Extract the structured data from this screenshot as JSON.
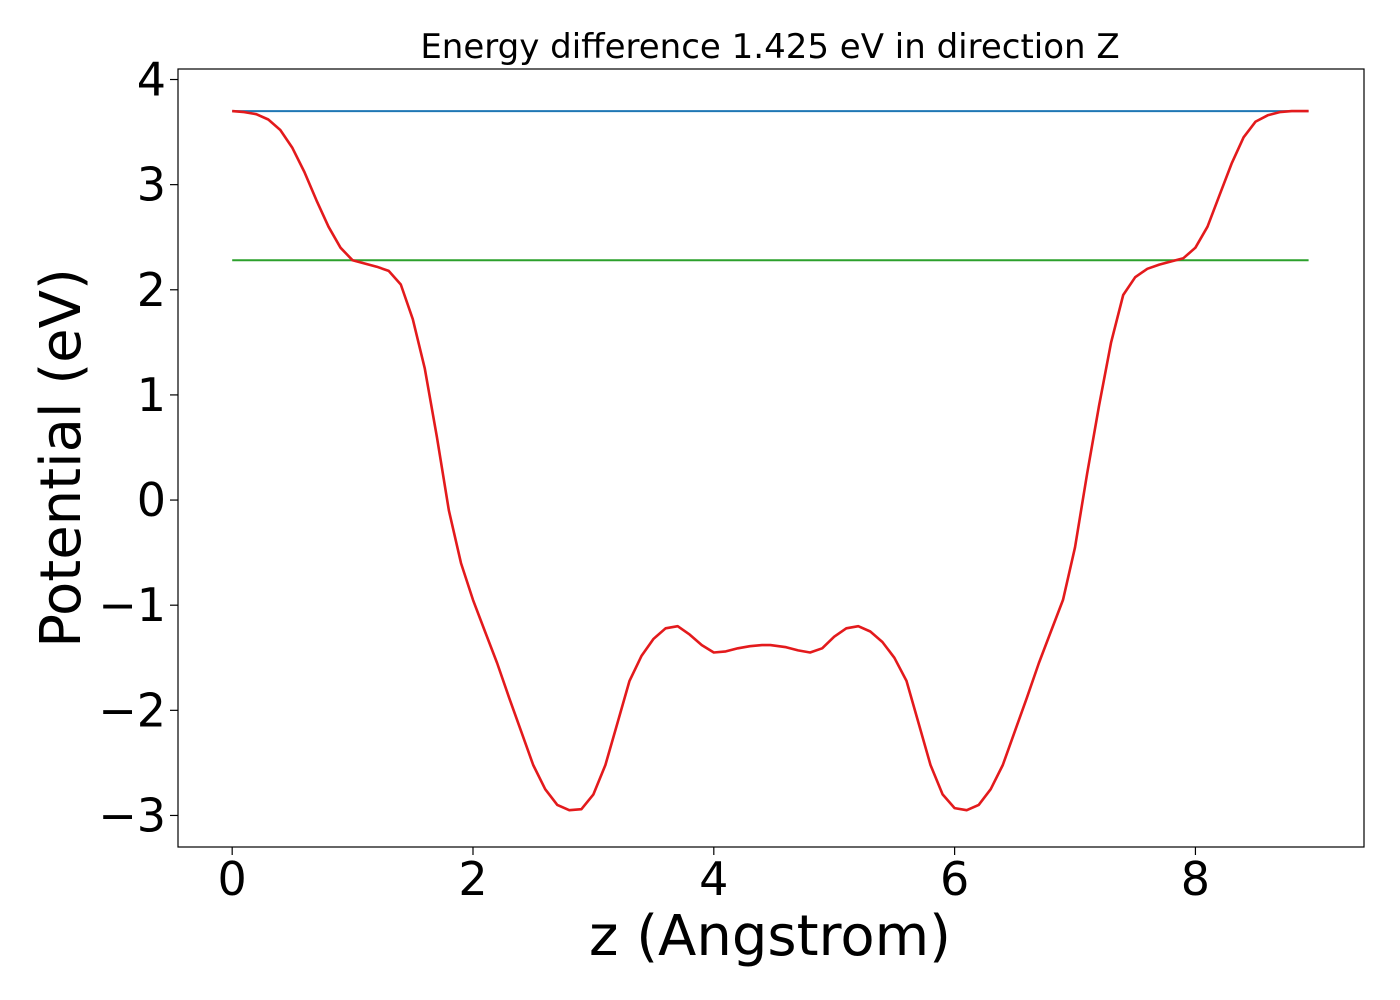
{
  "chart_data": {
    "type": "line",
    "title": "Energy difference 1.425 eV in direction Z",
    "xlabel": "z (Angstrom)",
    "ylabel": "Potential (eV)",
    "xlim": [
      -0.45,
      9.4
    ],
    "ylim": [
      -3.3,
      4.1
    ],
    "xticks": [
      0,
      2,
      4,
      6,
      8
    ],
    "xtick_labels": [
      "0",
      "2",
      "4",
      "6",
      "8"
    ],
    "yticks": [
      4,
      3,
      2,
      1,
      0,
      -1,
      -2,
      -3
    ],
    "ytick_labels": [
      "4",
      "3",
      "2",
      "1",
      "0",
      "−1",
      "−2",
      "−3"
    ],
    "grid": false,
    "series": [
      {
        "color": "#1f77b4",
        "x": [
          0,
          8.94
        ],
        "y": [
          3.7,
          3.7
        ]
      },
      {
        "color": "#2ca02c",
        "x": [
          0,
          8.94
        ],
        "y": [
          2.28,
          2.28
        ]
      },
      {
        "color": "#e31a1c",
        "x": [
          0,
          0.1,
          0.2,
          0.3,
          0.4,
          0.5,
          0.6,
          0.7,
          0.8,
          0.9,
          1.0,
          1.1,
          1.2,
          1.3,
          1.4,
          1.5,
          1.6,
          1.7,
          1.8,
          1.9,
          2.0,
          2.1,
          2.2,
          2.3,
          2.4,
          2.5,
          2.6,
          2.7,
          2.8,
          2.9,
          3.0,
          3.1,
          3.2,
          3.3,
          3.4,
          3.5,
          3.6,
          3.7,
          3.8,
          3.9,
          4.0,
          4.1,
          4.2,
          4.3,
          4.4,
          4.47,
          4.6,
          4.7,
          4.8,
          4.9,
          5.0,
          5.1,
          5.2,
          5.3,
          5.4,
          5.5,
          5.6,
          5.7,
          5.8,
          5.9,
          6.0,
          6.1,
          6.2,
          6.3,
          6.4,
          6.5,
          6.6,
          6.7,
          6.8,
          6.9,
          7.0,
          7.1,
          7.2,
          7.3,
          7.4,
          7.5,
          7.6,
          7.7,
          7.8,
          7.9,
          8.0,
          8.1,
          8.2,
          8.3,
          8.4,
          8.5,
          8.6,
          8.7,
          8.8,
          8.94
        ],
        "y": [
          3.7,
          3.69,
          3.67,
          3.62,
          3.52,
          3.35,
          3.12,
          2.85,
          2.6,
          2.4,
          2.28,
          2.25,
          2.22,
          2.18,
          2.05,
          1.72,
          1.25,
          0.6,
          -0.1,
          -0.6,
          -0.95,
          -1.25,
          -1.55,
          -1.88,
          -2.2,
          -2.52,
          -2.75,
          -2.9,
          -2.95,
          -2.94,
          -2.8,
          -2.52,
          -2.12,
          -1.72,
          -1.48,
          -1.32,
          -1.22,
          -1.2,
          -1.28,
          -1.38,
          -1.45,
          -1.44,
          -1.41,
          -1.39,
          -1.38,
          -1.38,
          -1.4,
          -1.43,
          -1.45,
          -1.41,
          -1.3,
          -1.22,
          -1.2,
          -1.25,
          -1.35,
          -1.5,
          -1.72,
          -2.12,
          -2.52,
          -2.8,
          -2.93,
          -2.95,
          -2.9,
          -2.75,
          -2.52,
          -2.2,
          -1.88,
          -1.55,
          -1.25,
          -0.95,
          -0.45,
          0.25,
          0.9,
          1.5,
          1.95,
          2.12,
          2.2,
          2.24,
          2.27,
          2.3,
          2.4,
          2.6,
          2.9,
          3.2,
          3.45,
          3.6,
          3.66,
          3.69,
          3.7,
          3.7
        ]
      }
    ]
  }
}
